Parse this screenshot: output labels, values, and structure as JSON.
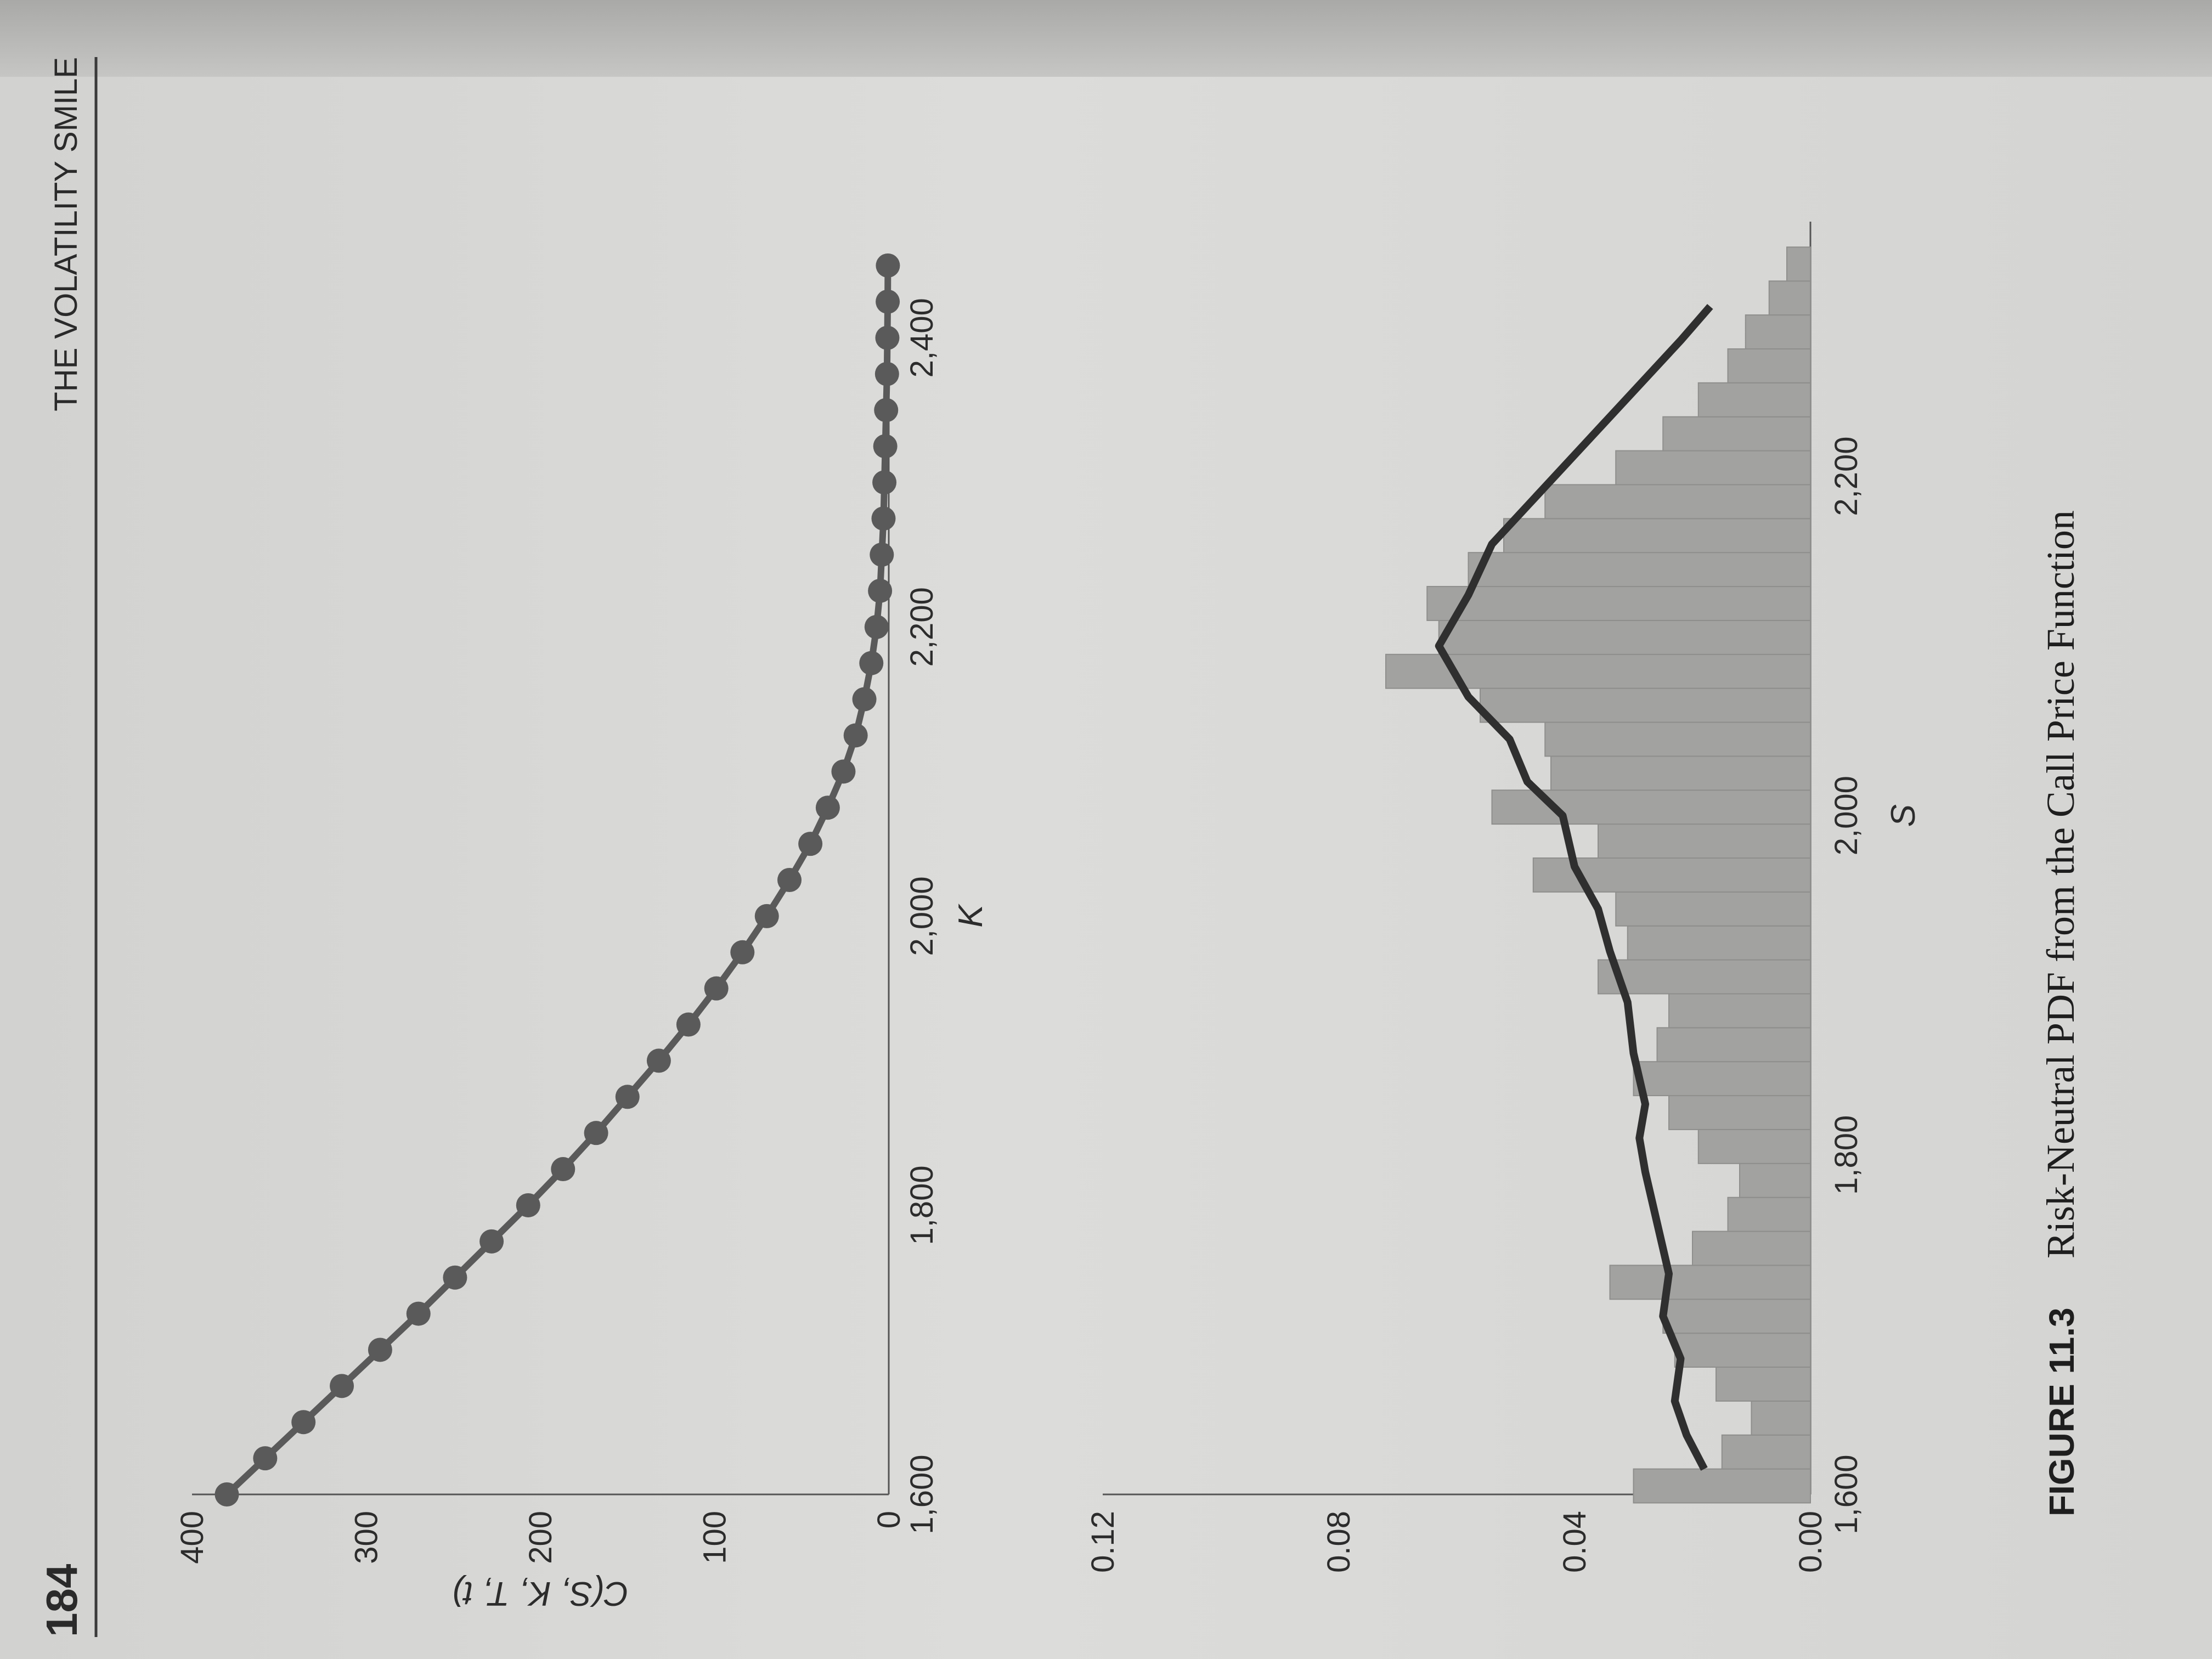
{
  "header": {
    "page_number": "184",
    "running_title": "THE VOLATILITY SMILE"
  },
  "caption": {
    "number": "FIGURE 11.3",
    "text": "Risk-Neutral PDF from the Call Price Function"
  },
  "colors": {
    "marker_line": "#5a5a5a",
    "bar_fill": "#a2a2a0",
    "pdf_line": "#2f2f2f"
  },
  "chart_data": [
    {
      "type": "line",
      "ylabel": "C(S, K, T, t)",
      "xlabel": "K",
      "xlim": [
        1600,
        2450
      ],
      "ylim": [
        0,
        400
      ],
      "x_ticks": [
        1600,
        1800,
        2000,
        2200,
        2400
      ],
      "x_tick_labels": [
        "1,600",
        "1,800",
        "2,000",
        "2,200",
        "2,400"
      ],
      "y_ticks": [
        0,
        100,
        200,
        300,
        400
      ],
      "y_tick_labels": [
        "0",
        "100",
        "200",
        "300",
        "400"
      ],
      "grid": false,
      "series": [
        {
          "x": [
            1600,
            1625,
            1650,
            1675,
            1700,
            1725,
            1750,
            1775,
            1800,
            1825,
            1850,
            1875,
            1900,
            1925,
            1950,
            1975,
            2000,
            2025,
            2050,
            2075,
            2100,
            2125,
            2150,
            2175,
            2200,
            2225,
            2250,
            2275,
            2300,
            2325,
            2350,
            2375,
            2400,
            2425,
            2450
          ],
          "y": [
            380,
            358,
            336,
            314,
            292,
            270,
            249,
            228,
            207,
            187,
            168,
            150,
            132,
            115,
            99,
            84,
            70,
            57,
            45,
            35,
            26,
            19,
            14,
            10,
            7,
            5,
            4,
            3,
            2.5,
            2,
            1.5,
            1,
            0.8,
            0.6,
            0.5
          ]
        }
      ]
    },
    {
      "type": "bar",
      "xlabel": "S",
      "ylabel": "",
      "xlim": [
        1600,
        2350
      ],
      "ylim": [
        0,
        0.12
      ],
      "x_ticks": [
        1600,
        1800,
        2000,
        2200
      ],
      "x_tick_labels": [
        "1,600",
        "1,800",
        "2,000",
        "2,200"
      ],
      "y_ticks": [
        0,
        0.04,
        0.08,
        0.12
      ],
      "y_tick_labels": [
        "0.00",
        "0.04",
        "0.08",
        "0.12"
      ],
      "grid": false,
      "bin_width": 20,
      "bins": [
        {
          "x": 1605,
          "y": 0.03
        },
        {
          "x": 1625,
          "y": 0.015
        },
        {
          "x": 1645,
          "y": 0.01
        },
        {
          "x": 1665,
          "y": 0.016
        },
        {
          "x": 1685,
          "y": 0.023
        },
        {
          "x": 1705,
          "y": 0.025
        },
        {
          "x": 1725,
          "y": 0.034
        },
        {
          "x": 1745,
          "y": 0.02
        },
        {
          "x": 1765,
          "y": 0.014
        },
        {
          "x": 1785,
          "y": 0.012
        },
        {
          "x": 1805,
          "y": 0.019
        },
        {
          "x": 1825,
          "y": 0.024
        },
        {
          "x": 1845,
          "y": 0.03
        },
        {
          "x": 1865,
          "y": 0.026
        },
        {
          "x": 1885,
          "y": 0.024
        },
        {
          "x": 1905,
          "y": 0.036
        },
        {
          "x": 1925,
          "y": 0.031
        },
        {
          "x": 1945,
          "y": 0.033
        },
        {
          "x": 1965,
          "y": 0.047
        },
        {
          "x": 1985,
          "y": 0.036
        },
        {
          "x": 2005,
          "y": 0.054
        },
        {
          "x": 2025,
          "y": 0.044
        },
        {
          "x": 2045,
          "y": 0.045
        },
        {
          "x": 2065,
          "y": 0.056
        },
        {
          "x": 2085,
          "y": 0.072
        },
        {
          "x": 2105,
          "y": 0.063
        },
        {
          "x": 2125,
          "y": 0.065
        },
        {
          "x": 2145,
          "y": 0.058
        },
        {
          "x": 2165,
          "y": 0.052
        },
        {
          "x": 2185,
          "y": 0.045
        },
        {
          "x": 2205,
          "y": 0.033
        },
        {
          "x": 2225,
          "y": 0.025
        },
        {
          "x": 2245,
          "y": 0.019
        },
        {
          "x": 2265,
          "y": 0.014
        },
        {
          "x": 2285,
          "y": 0.011
        },
        {
          "x": 2305,
          "y": 0.007
        },
        {
          "x": 2325,
          "y": 0.004
        }
      ],
      "series": [
        {
          "type": "line",
          "x": [
            1615,
            1635,
            1655,
            1680,
            1705,
            1730,
            1760,
            1790,
            1810,
            1830,
            1860,
            1890,
            1920,
            1945,
            1970,
            2000,
            2020,
            2045,
            2070,
            2100,
            2130,
            2160,
            2190,
            2220,
            2250,
            2280,
            2300
          ],
          "y": [
            0.018,
            0.021,
            0.023,
            0.022,
            0.025,
            0.024,
            0.026,
            0.028,
            0.029,
            0.028,
            0.03,
            0.031,
            0.034,
            0.036,
            0.04,
            0.042,
            0.048,
            0.051,
            0.058,
            0.063,
            0.058,
            0.054,
            0.046,
            0.038,
            0.03,
            0.022,
            0.017
          ]
        }
      ]
    }
  ]
}
